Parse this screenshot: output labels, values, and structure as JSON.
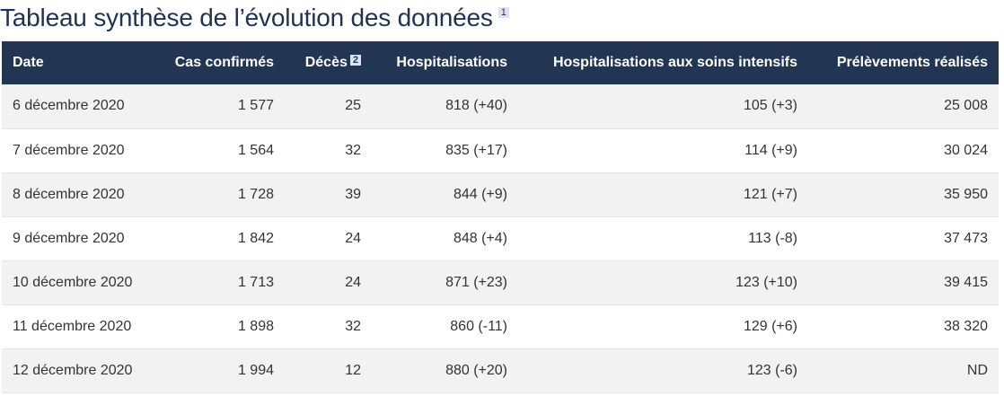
{
  "title": "Tableau synthèse de l’évolution des données",
  "title_footnote": "1",
  "colors": {
    "title": "#1f3353",
    "header_bg": "#223654",
    "header_text": "#ffffff",
    "row_alt": "#f2f2f2",
    "footnote_badge": "#dbe4f0"
  },
  "table": {
    "headers": {
      "date": "Date",
      "cas": "Cas confirmés",
      "deces": "Décès",
      "deces_footnote": "2",
      "hosp": "Hospitalisations",
      "si": "Hospitalisations aux soins intensifs",
      "prel": "Prélèvements réalisés"
    },
    "rows": [
      {
        "date": "6 décembre 2020",
        "cas": "1 577",
        "deces": "25",
        "hosp": "818 (+40)",
        "si": "105 (+3)",
        "prel": "25 008"
      },
      {
        "date": "7 décembre 2020",
        "cas": "1 564",
        "deces": "32",
        "hosp": "835 (+17)",
        "si": "114 (+9)",
        "prel": "30 024"
      },
      {
        "date": "8 décembre 2020",
        "cas": "1 728",
        "deces": "39",
        "hosp": "844 (+9)",
        "si": "121 (+7)",
        "prel": "35 950"
      },
      {
        "date": "9 décembre 2020",
        "cas": "1 842",
        "deces": "24",
        "hosp": "848 (+4)",
        "si": "113 (-8)",
        "prel": "37 473"
      },
      {
        "date": "10 décembre 2020",
        "cas": "1 713",
        "deces": "24",
        "hosp": "871 (+23)",
        "si": "123 (+10)",
        "prel": "39 415"
      },
      {
        "date": "11 décembre 2020",
        "cas": "1 898",
        "deces": "32",
        "hosp": "860 (-11)",
        "si": "129 (+6)",
        "prel": "38 320"
      },
      {
        "date": "12 décembre 2020",
        "cas": "1 994",
        "deces": "12",
        "hosp": "880 (+20)",
        "si": "123 (-6)",
        "prel": "ND"
      }
    ]
  }
}
